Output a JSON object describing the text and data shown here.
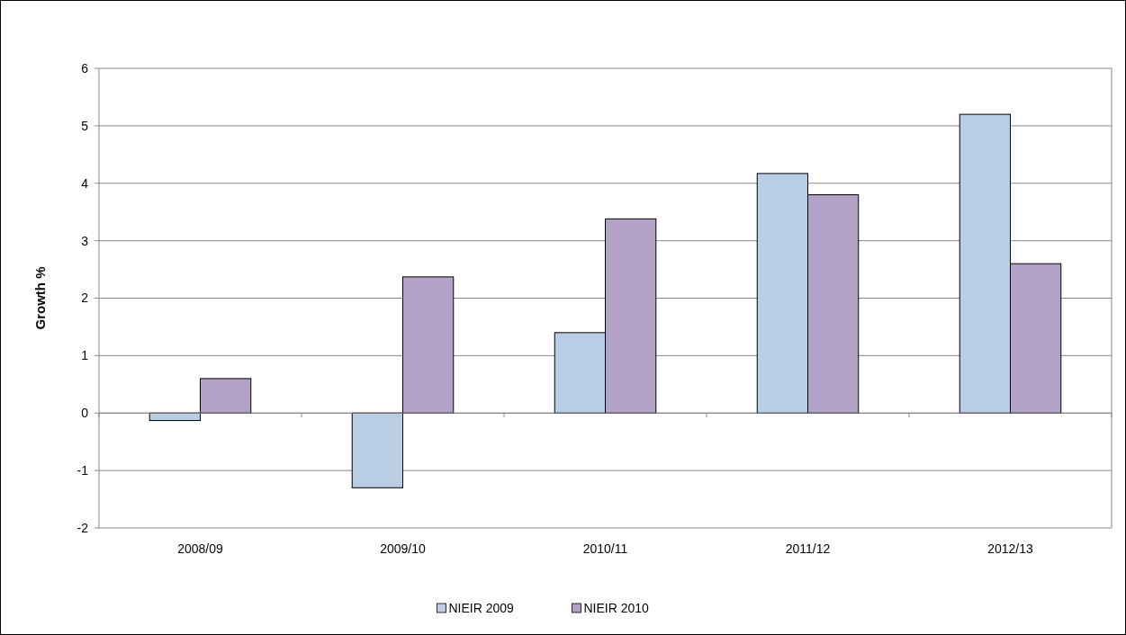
{
  "chart_data": {
    "type": "bar",
    "ylabel": "Growth %",
    "categories": [
      "2008/09",
      "2009/10",
      "2010/11",
      "2011/12",
      "2012/13"
    ],
    "series": [
      {
        "name": "NIEIR 2009",
        "color": "#b9cde5",
        "values": [
          -0.13,
          -1.3,
          1.4,
          4.17,
          5.2
        ]
      },
      {
        "name": "NIEIR 2010",
        "color": "#b3a2c7",
        "values": [
          0.6,
          2.37,
          3.38,
          3.8,
          2.6
        ]
      }
    ],
    "ylim": [
      -2,
      6
    ],
    "yticks": [
      -2,
      -1,
      0,
      1,
      2,
      3,
      4,
      5,
      6
    ],
    "grid": "y",
    "legend": "bottom"
  }
}
